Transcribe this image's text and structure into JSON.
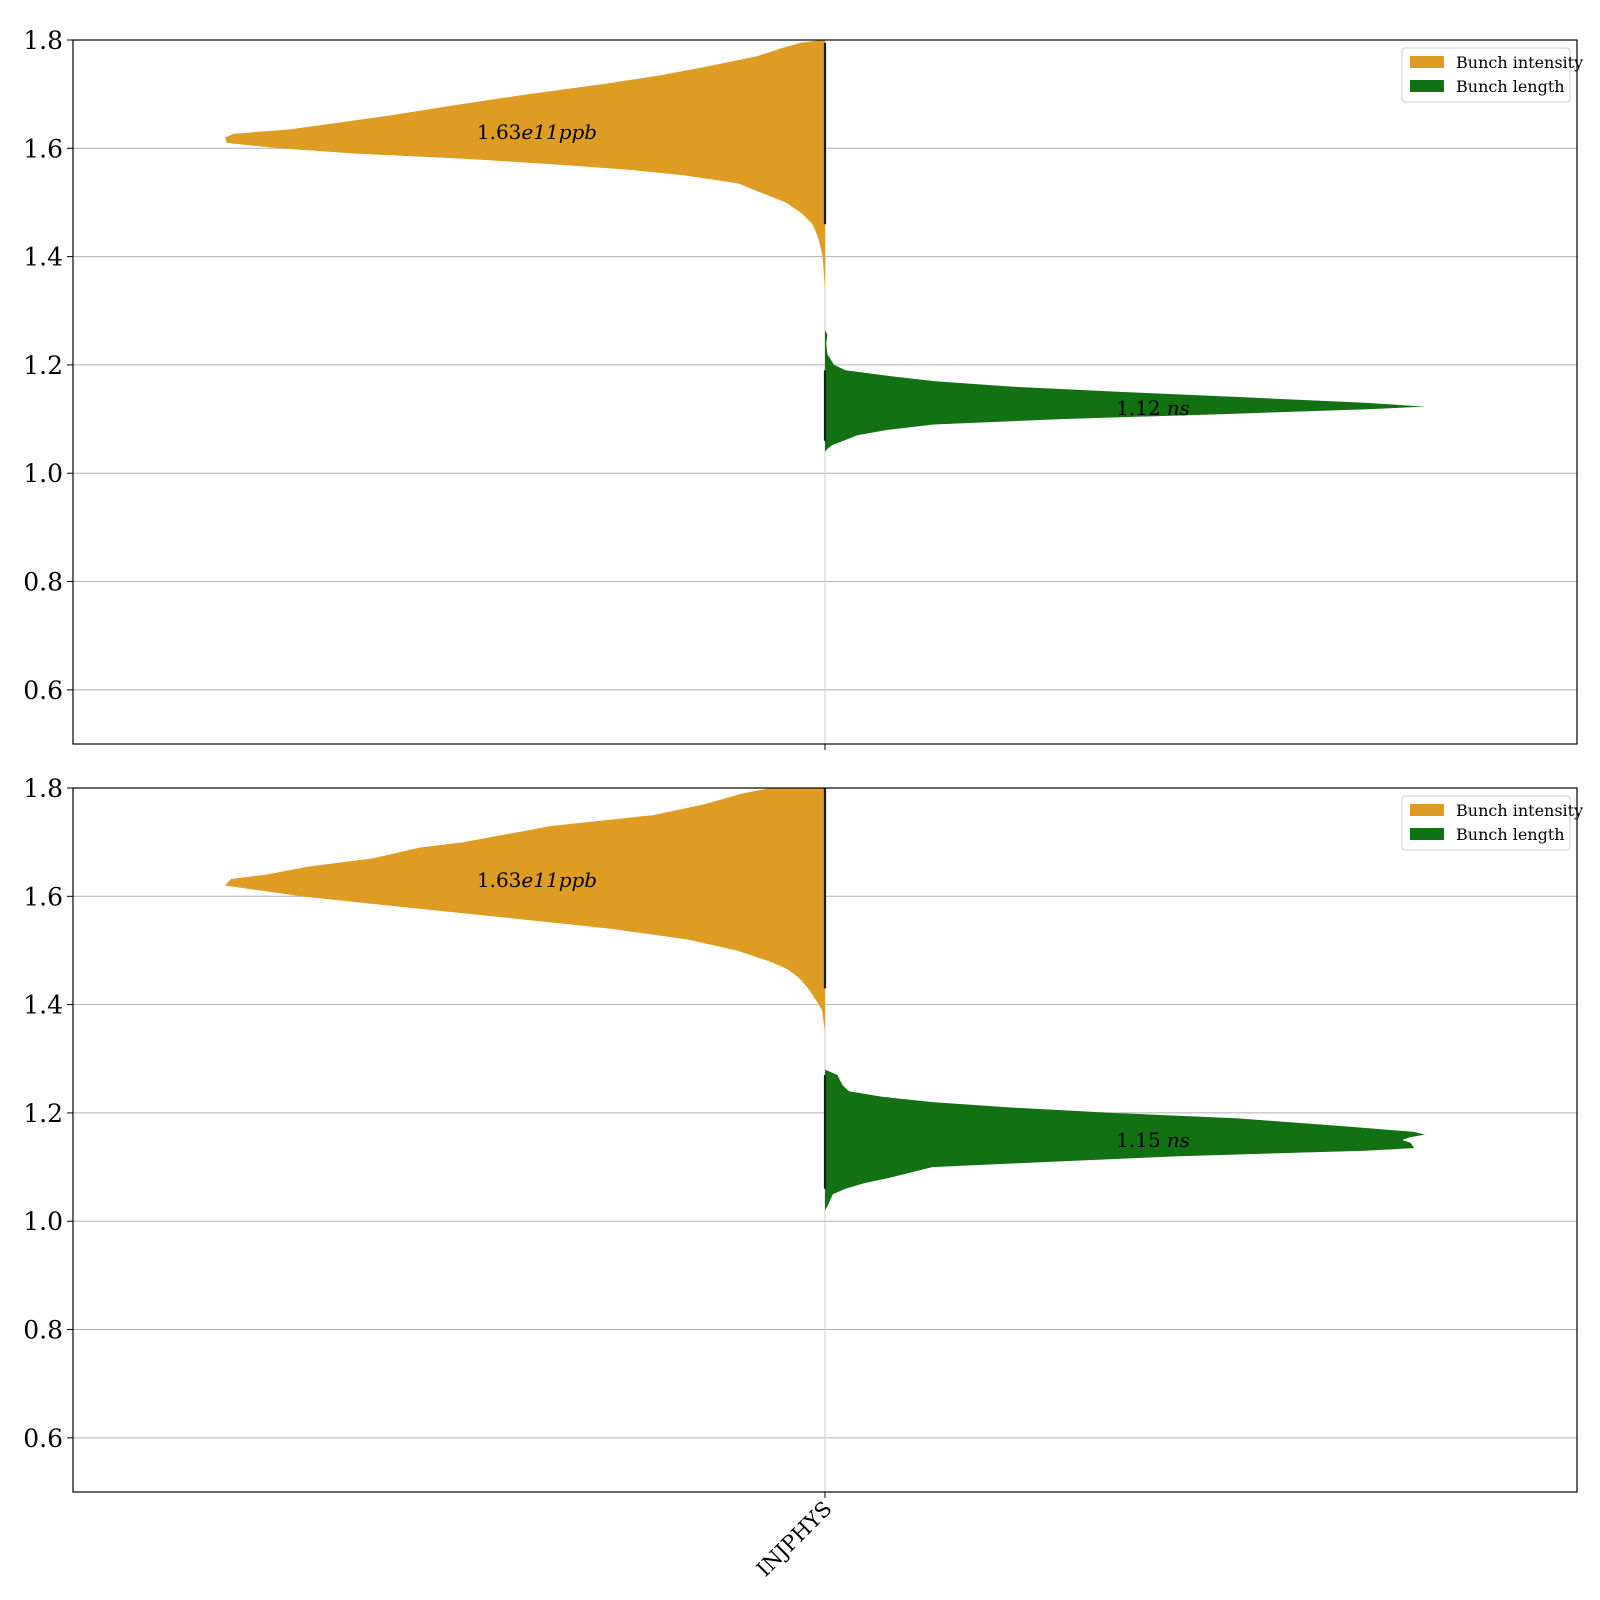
{
  "colors": {
    "intensity": "#df9c22",
    "length": "#127112",
    "grid": "#b0b0b0",
    "axis": "#000000",
    "median_line": "#1a1a1a"
  },
  "chart_data": [
    {
      "type": "violin",
      "categories": [
        "INJPHYS"
      ],
      "show_category_labels": false,
      "ylim": [
        0.5,
        1.8
      ],
      "yticks": [
        0.6,
        0.8,
        1.0,
        1.2,
        1.4,
        1.6,
        1.8
      ],
      "ytick_labels": [
        "0.6",
        "0.8",
        "1.0",
        "1.2",
        "1.4",
        "1.6",
        "1.8"
      ],
      "grid": "horizontal",
      "legend": {
        "placement": "top-right",
        "entries": [
          "Bunch intensity",
          "Bunch length"
        ]
      },
      "series": [
        {
          "name": "Bunch intensity",
          "side": "left",
          "annotation": {
            "value": "1.63",
            "exp": "e11",
            "unit": "ppb",
            "y": 1.63
          },
          "profile": [
            [
              1.8,
              0.005
            ],
            [
              1.795,
              0.04
            ],
            [
              1.785,
              0.072
            ],
            [
              1.77,
              0.113
            ],
            [
              1.75,
              0.202
            ],
            [
              1.735,
              0.274
            ],
            [
              1.72,
              0.36
            ],
            [
              1.7,
              0.495
            ],
            [
              1.68,
              0.615
            ],
            [
              1.66,
              0.728
            ],
            [
              1.645,
              0.826
            ],
            [
              1.635,
              0.892
            ],
            [
              1.627,
              0.985
            ],
            [
              1.62,
              1.0
            ],
            [
              1.61,
              0.997
            ],
            [
              1.6,
              0.91
            ],
            [
              1.59,
              0.778
            ],
            [
              1.58,
              0.59
            ],
            [
              1.57,
              0.445
            ],
            [
              1.56,
              0.322
            ],
            [
              1.55,
              0.234
            ],
            [
              1.535,
              0.144
            ],
            [
              1.52,
              0.111
            ],
            [
              1.5,
              0.065
            ],
            [
              1.48,
              0.039
            ],
            [
              1.46,
              0.021
            ],
            [
              1.44,
              0.013
            ],
            [
              1.42,
              0.008
            ],
            [
              1.4,
              0.004
            ],
            [
              1.37,
              0.002
            ],
            [
              1.34,
              0.0
            ]
          ]
        },
        {
          "name": "Bunch length",
          "side": "right",
          "annotation": {
            "value": "1.12",
            "unit": "ns",
            "y": 1.12
          },
          "profile": [
            [
              1.265,
              0.0
            ],
            [
              1.255,
              0.004
            ],
            [
              1.24,
              0.002
            ],
            [
              1.22,
              0.004
            ],
            [
              1.2,
              0.015
            ],
            [
              1.19,
              0.034
            ],
            [
              1.18,
              0.104
            ],
            [
              1.17,
              0.184
            ],
            [
              1.16,
              0.311
            ],
            [
              1.15,
              0.497
            ],
            [
              1.14,
              0.704
            ],
            [
              1.13,
              0.9
            ],
            [
              1.123,
              1.0
            ],
            [
              1.118,
              0.905
            ],
            [
              1.11,
              0.684
            ],
            [
              1.1,
              0.394
            ],
            [
              1.09,
              0.181
            ],
            [
              1.08,
              0.104
            ],
            [
              1.07,
              0.054
            ],
            [
              1.06,
              0.031
            ],
            [
              1.052,
              0.012
            ],
            [
              1.045,
              0.004
            ],
            [
              1.04,
              0.0
            ]
          ]
        }
      ]
    },
    {
      "type": "violin",
      "categories": [
        "INJPHYS"
      ],
      "show_category_labels": true,
      "ylim": [
        0.5,
        1.8
      ],
      "yticks": [
        0.6,
        0.8,
        1.0,
        1.2,
        1.4,
        1.6,
        1.8
      ],
      "ytick_labels": [
        "0.6",
        "0.8",
        "1.0",
        "1.2",
        "1.4",
        "1.6",
        "1.8"
      ],
      "grid": "horizontal",
      "legend": {
        "placement": "top-right",
        "entries": [
          "Bunch intensity",
          "Bunch length"
        ]
      },
      "series": [
        {
          "name": "Bunch intensity",
          "side": "left",
          "annotation": {
            "value": "1.63",
            "exp": "e11",
            "unit": "ppb",
            "y": 1.63
          },
          "profile": [
            [
              1.8,
              0.09
            ],
            [
              1.79,
              0.137
            ],
            [
              1.77,
              0.201
            ],
            [
              1.75,
              0.286
            ],
            [
              1.73,
              0.455
            ],
            [
              1.7,
              0.603
            ],
            [
              1.69,
              0.676
            ],
            [
              1.67,
              0.754
            ],
            [
              1.655,
              0.86
            ],
            [
              1.64,
              0.931
            ],
            [
              1.632,
              0.99
            ],
            [
              1.62,
              1.0
            ],
            [
              1.61,
              0.936
            ],
            [
              1.6,
              0.874
            ],
            [
              1.58,
              0.702
            ],
            [
              1.56,
              0.527
            ],
            [
              1.54,
              0.357
            ],
            [
              1.52,
              0.228
            ],
            [
              1.5,
              0.147
            ],
            [
              1.48,
              0.093
            ],
            [
              1.465,
              0.062
            ],
            [
              1.45,
              0.044
            ],
            [
              1.43,
              0.028
            ],
            [
              1.41,
              0.016
            ],
            [
              1.39,
              0.005
            ],
            [
              1.35,
              0.0
            ]
          ]
        },
        {
          "name": "Bunch length",
          "side": "right",
          "annotation": {
            "value": "1.15",
            "unit": "ns",
            "y": 1.15
          },
          "profile": [
            [
              1.28,
              0.0
            ],
            [
              1.27,
              0.021
            ],
            [
              1.26,
              0.025
            ],
            [
              1.25,
              0.03
            ],
            [
              1.24,
              0.04
            ],
            [
              1.23,
              0.095
            ],
            [
              1.22,
              0.179
            ],
            [
              1.21,
              0.31
            ],
            [
              1.2,
              0.478
            ],
            [
              1.19,
              0.685
            ],
            [
              1.175,
              0.87
            ],
            [
              1.165,
              0.982
            ],
            [
              1.16,
              1.0
            ],
            [
              1.155,
              0.975
            ],
            [
              1.15,
              0.962
            ],
            [
              1.145,
              0.976
            ],
            [
              1.135,
              0.982
            ],
            [
              1.13,
              0.9
            ],
            [
              1.12,
              0.59
            ],
            [
              1.11,
              0.378
            ],
            [
              1.1,
              0.179
            ],
            [
              1.08,
              0.107
            ],
            [
              1.07,
              0.065
            ],
            [
              1.06,
              0.034
            ],
            [
              1.05,
              0.013
            ],
            [
              1.03,
              0.005
            ],
            [
              1.02,
              0.0
            ]
          ]
        }
      ]
    }
  ]
}
